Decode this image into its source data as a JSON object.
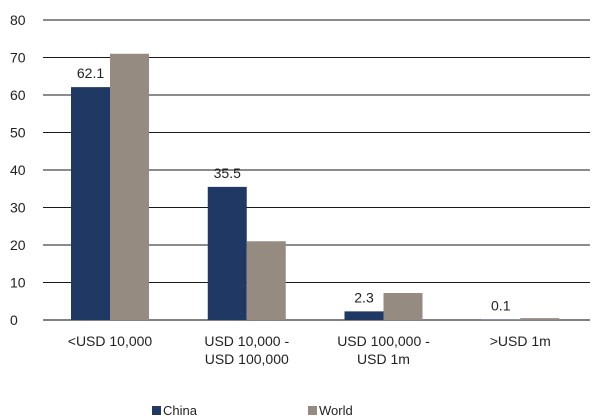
{
  "chart_data": {
    "type": "bar",
    "categories": [
      [
        "<USD 10,000"
      ],
      [
        "USD 10,000 -",
        "USD 100,000"
      ],
      [
        "USD 100,000 -",
        "USD 1m"
      ],
      [
        ">USD 1m"
      ]
    ],
    "series": [
      {
        "name": "China",
        "values": [
          62.1,
          35.5,
          2.3,
          0.1
        ],
        "color": "#1f3864",
        "data_labels": [
          "62.1",
          "35.5",
          "2.3",
          "0.1"
        ]
      },
      {
        "name": "World",
        "values": [
          71,
          21,
          7.2,
          0.5
        ],
        "color": "#958b80"
      }
    ],
    "ylim": [
      0,
      80
    ],
    "yticks": [
      0,
      10,
      20,
      30,
      40,
      50,
      60,
      70,
      80
    ],
    "grid": true,
    "legend_position": "bottom"
  }
}
